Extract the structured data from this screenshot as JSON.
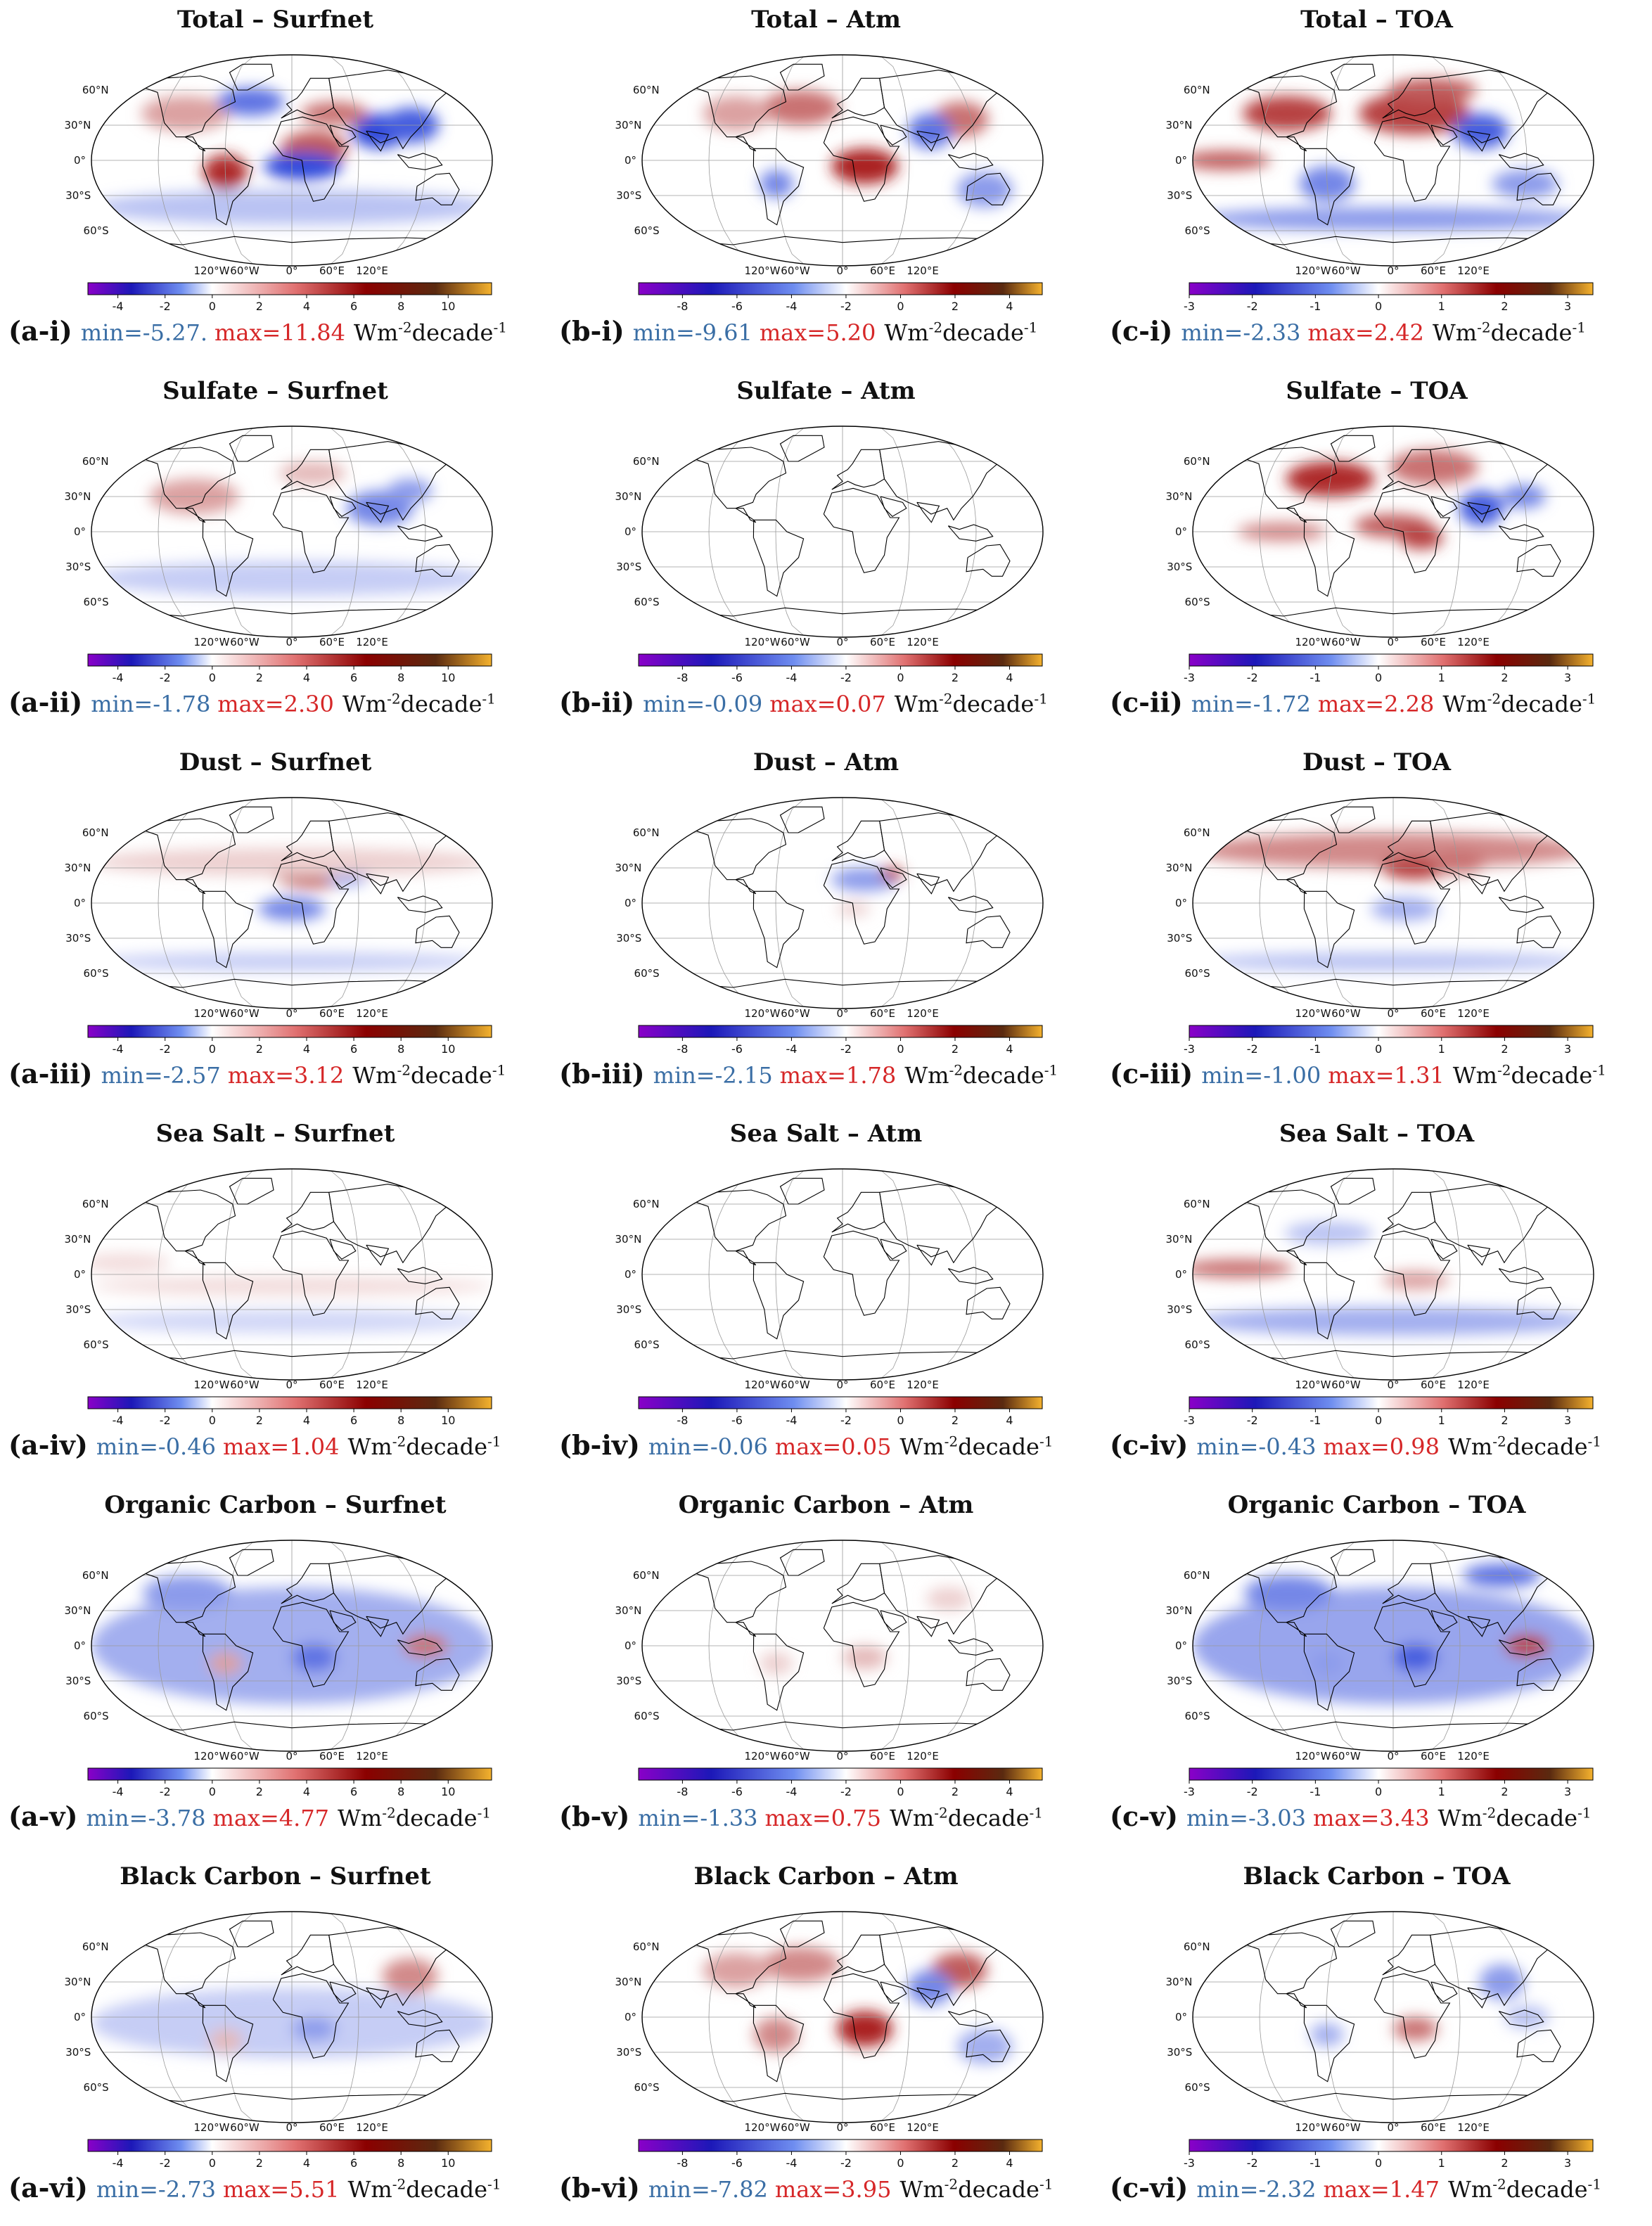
{
  "unit": {
    "pre": "Wm",
    "exp1": "-2",
    "mid": "decade",
    "exp2": "-1"
  },
  "colorbars": {
    "a": {
      "ticks": [
        "-4",
        "-2",
        "0",
        "2",
        "4",
        "6",
        "8",
        "10"
      ],
      "values": [
        -4,
        -2,
        0,
        2,
        4,
        6,
        8,
        10
      ],
      "range": [
        -5.27,
        11.84
      ],
      "zero": 0
    },
    "b": {
      "ticks": [
        "-8",
        "-6",
        "-4",
        "-2",
        "0",
        "2",
        "4"
      ],
      "values": [
        -8,
        -6,
        -4,
        -2,
        0,
        2,
        4
      ],
      "range": [
        -9.61,
        5.2
      ],
      "zero": -2
    },
    "c": {
      "ticks": [
        "-3",
        "-2",
        "-1",
        "0",
        "1",
        "2",
        "3"
      ],
      "values": [
        -3,
        -2,
        -1,
        0,
        1,
        2,
        3
      ],
      "range": [
        -3.0,
        3.4
      ],
      "zero": 0
    }
  },
  "map_labels": {
    "lat": [
      "60°N",
      "30°N",
      "0°",
      "30°S",
      "60°S"
    ],
    "lon": [
      "120°W",
      "60°W",
      "0°",
      "60°E",
      "120°E"
    ]
  },
  "panels": [
    {
      "id": "a-i",
      "col": "a",
      "title": "Total – Surfnet",
      "label": "(a-i)",
      "min": "min=-5.27.",
      "max": "max=11.84",
      "intensity": 0.9
    },
    {
      "id": "b-i",
      "col": "b",
      "title": "Total – Atm",
      "label": "(b-i)",
      "min": "min=-9.61",
      "max": "max=5.20",
      "intensity": 0.8
    },
    {
      "id": "c-i",
      "col": "c",
      "title": "Total – TOA",
      "label": "(c-i)",
      "min": "min=-2.33",
      "max": "max=2.42",
      "intensity": 0.9
    },
    {
      "id": "a-ii",
      "col": "a",
      "title": "Sulfate – Surfnet",
      "label": "(a-ii)",
      "min": "min=-1.78",
      "max": "max=2.30",
      "intensity": 0.3
    },
    {
      "id": "b-ii",
      "col": "b",
      "title": "Sulfate – Atm",
      "label": "(b-ii)",
      "min": "min=-0.09",
      "max": "max=0.07",
      "intensity": 0.03
    },
    {
      "id": "c-ii",
      "col": "c",
      "title": "Sulfate – TOA",
      "label": "(c-ii)",
      "min": "min=-1.72",
      "max": "max=2.28",
      "intensity": 0.7
    },
    {
      "id": "a-iii",
      "col": "a",
      "title": "Dust – Surfnet",
      "label": "(a-iii)",
      "min": "min=-2.57",
      "max": "max=3.12",
      "intensity": 0.35
    },
    {
      "id": "b-iii",
      "col": "b",
      "title": "Dust – Atm",
      "label": "(b-iii)",
      "min": "min=-2.15",
      "max": "max=1.78",
      "intensity": 0.3
    },
    {
      "id": "c-iii",
      "col": "c",
      "title": "Dust – TOA",
      "label": "(c-iii)",
      "min": "min=-1.00",
      "max": "max=1.31",
      "intensity": 0.5
    },
    {
      "id": "a-iv",
      "col": "a",
      "title": "Sea Salt – Surfnet",
      "label": "(a-iv)",
      "min": "min=-0.46",
      "max": "max=1.04",
      "intensity": 0.15
    },
    {
      "id": "b-iv",
      "col": "b",
      "title": "Sea Salt – Atm",
      "label": "(b-iv)",
      "min": "min=-0.06",
      "max": "max=0.05",
      "intensity": 0.03
    },
    {
      "id": "c-iv",
      "col": "c",
      "title": "Sea Salt – TOA",
      "label": "(c-iv)",
      "min": "min=-0.43",
      "max": "max=0.98",
      "intensity": 0.4
    },
    {
      "id": "a-v",
      "col": "a",
      "title": "Organic Carbon – Surfnet",
      "label": "(a-v)",
      "min": "min=-3.78",
      "max": "max=4.77",
      "intensity": 0.5
    },
    {
      "id": "b-v",
      "col": "b",
      "title": "Organic Carbon – Atm",
      "label": "(b-v)",
      "min": "min=-1.33",
      "max": "max=0.75",
      "intensity": 0.2
    },
    {
      "id": "c-v",
      "col": "c",
      "title": "Organic Carbon – TOA",
      "label": "(c-v)",
      "min": "min=-3.03",
      "max": "max=3.43",
      "intensity": 0.7
    },
    {
      "id": "a-vi",
      "col": "a",
      "title": "Black Carbon – Surfnet",
      "label": "(a-vi)",
      "min": "min=-2.73",
      "max": "max=5.51",
      "intensity": 0.45
    },
    {
      "id": "b-vi",
      "col": "b",
      "title": "Black Carbon – Atm",
      "label": "(b-vi)",
      "min": "min=-7.82",
      "max": "max=3.95",
      "intensity": 0.8
    },
    {
      "id": "c-vi",
      "col": "c",
      "title": "Black Carbon – TOA",
      "label": "(c-vi)",
      "min": "min=-2.32",
      "max": "max=1.47",
      "intensity": 0.4
    }
  ]
}
